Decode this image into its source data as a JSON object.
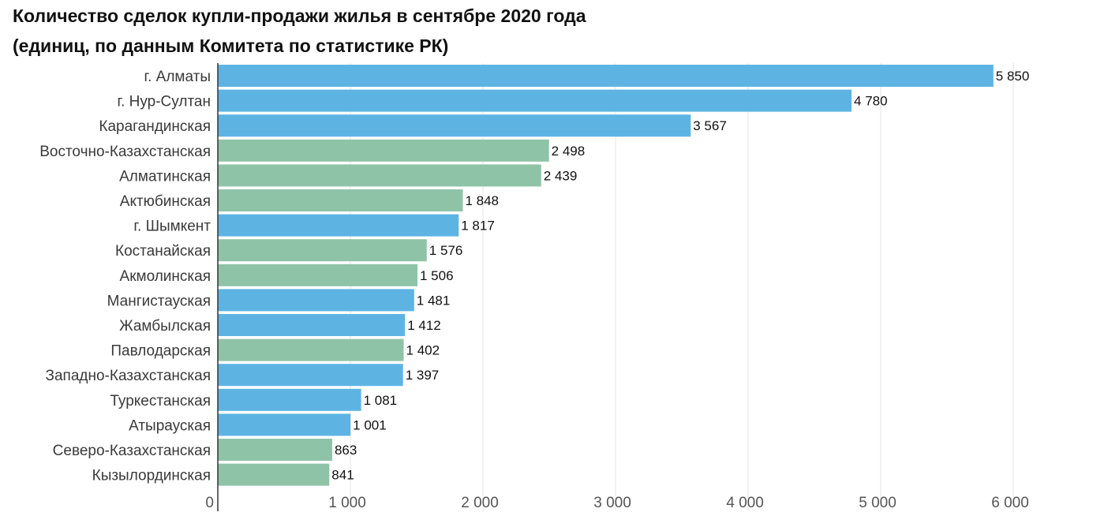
{
  "title_lines": [
    "Количество сделок купли-продажи жилья в сентябре 2020 года",
    "(единиц, по данным Комитета по статистике РК)"
  ],
  "colors": {
    "blue": "#5db4e3",
    "green": "#8fc3a8",
    "grid": "#e3e3e3",
    "axis": "#333333"
  },
  "chart_data": {
    "type": "bar",
    "orientation": "horizontal",
    "title": "Количество сделок купли-продажи жилья в сентябре 2020 года (единиц, по данным Комитета по статистике РК)",
    "xlim": [
      0,
      6000
    ],
    "grid": true,
    "x_ticks": [
      {
        "value": 0,
        "label": "0"
      },
      {
        "value": 1000,
        "label": "1 000"
      },
      {
        "value": 2000,
        "label": "2 000"
      },
      {
        "value": 3000,
        "label": "3 000"
      },
      {
        "value": 4000,
        "label": "4 000"
      },
      {
        "value": 5000,
        "label": "5 000"
      },
      {
        "value": 6000,
        "label": "6 000"
      }
    ],
    "categories": [
      "г. Алматы",
      "г. Нур-Султан",
      "Карагандинская",
      "Восточно-Казахстанская",
      "Алматинская",
      "Актюбинская",
      "г. Шымкент",
      "Костанайская",
      "Акмолинская",
      "Мангистауская",
      "Жамбылская",
      "Павлодарская",
      "Западно-Казахстанская",
      "Туркестанская",
      "Атырауская",
      "Северо-Казахстанская",
      "Кызылординская"
    ],
    "values": [
      5850,
      4780,
      3567,
      2498,
      2439,
      1848,
      1817,
      1576,
      1506,
      1481,
      1412,
      1402,
      1397,
      1081,
      1001,
      863,
      841
    ],
    "value_labels": [
      "5 850",
      "4 780",
      "3 567",
      "2 498",
      "2 439",
      "1 848",
      "1 817",
      "1 576",
      "1 506",
      "1 481",
      "1 412",
      "1 402",
      "1 397",
      "1 081",
      "1 001",
      "863",
      "841"
    ],
    "bar_colors": [
      "blue",
      "blue",
      "blue",
      "green",
      "green",
      "green",
      "blue",
      "green",
      "green",
      "blue",
      "blue",
      "green",
      "blue",
      "blue",
      "blue",
      "green",
      "green"
    ]
  }
}
